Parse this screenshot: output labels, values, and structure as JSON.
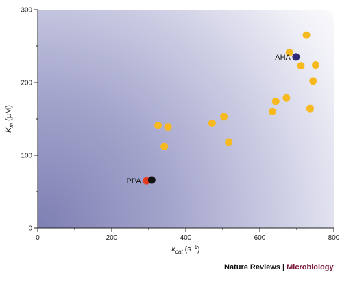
{
  "chart_data": {
    "type": "scatter",
    "title": "",
    "xlabel": {
      "main": "k",
      "sub": "cat",
      "unit": " (s",
      "sup": "−1",
      "close": ")"
    },
    "ylabel": {
      "main": "K",
      "sub": "m",
      "unit": " (µM)"
    },
    "xlim": [
      0,
      800
    ],
    "ylim": [
      0,
      300
    ],
    "xticks": [
      0,
      200,
      400,
      600,
      800
    ],
    "yticks": [
      0,
      100,
      200,
      300
    ],
    "grid": false,
    "background": "radial gradient: dark blue-violet at origin fading to white at top-right",
    "series": [
      {
        "color": "#f6b91f",
        "points": [
          [
            325,
            141
          ],
          [
            352,
            139
          ],
          [
            342,
            112
          ],
          [
            471,
            144
          ],
          [
            503,
            153
          ],
          [
            516,
            118
          ],
          [
            634,
            160
          ],
          [
            643,
            174
          ],
          [
            672,
            179
          ],
          [
            680,
            241
          ],
          [
            711,
            223
          ],
          [
            726,
            265
          ],
          [
            736,
            164
          ],
          [
            744,
            202
          ],
          [
            751,
            224
          ]
        ]
      },
      {
        "color": "#2e2a78",
        "points": [
          [
            698,
            235
          ]
        ],
        "label": "AHA"
      },
      {
        "color": "#e53a1e",
        "points": [
          [
            294,
            65
          ]
        ],
        "label": "PPA"
      },
      {
        "color": "#111111",
        "points": [
          [
            308,
            66
          ]
        ]
      }
    ]
  },
  "credit": {
    "publisher": "Nature Reviews",
    "separator": " | ",
    "journal": "Microbiology"
  }
}
